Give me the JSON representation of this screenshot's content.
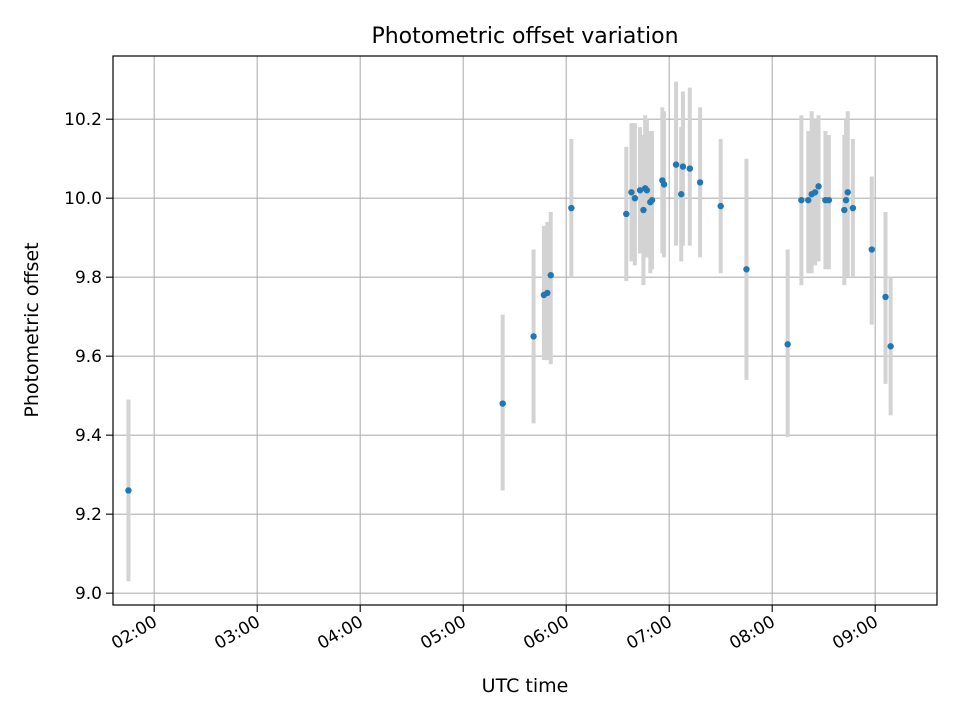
{
  "chart_data": {
    "type": "scatter",
    "title": "Photometric offset variation",
    "xlabel": "UTC time",
    "ylabel": "Photometric offset",
    "xlim": [
      "01:36",
      "09:36"
    ],
    "ylim": [
      8.97,
      10.36
    ],
    "x_ticks": [
      "02:00",
      "03:00",
      "04:00",
      "05:00",
      "06:00",
      "07:00",
      "08:00",
      "09:00"
    ],
    "y_ticks": [
      "9.0",
      "9.2",
      "9.4",
      "9.6",
      "9.8",
      "10.0",
      "10.2"
    ],
    "grid": true,
    "marker_color": "#1f77b4",
    "errorbar_color": "#d3d3d3",
    "points": [
      {
        "t": "01:45",
        "y": 9.26,
        "lo": 9.03,
        "hi": 9.49
      },
      {
        "t": "05:23",
        "y": 9.48,
        "lo": 9.26,
        "hi": 9.705
      },
      {
        "t": "05:41",
        "y": 9.65,
        "lo": 9.43,
        "hi": 9.87
      },
      {
        "t": "05:47",
        "y": 9.755,
        "lo": 9.59,
        "hi": 9.93
      },
      {
        "t": "05:49",
        "y": 9.76,
        "lo": 9.59,
        "hi": 9.94
      },
      {
        "t": "05:51",
        "y": 9.805,
        "lo": 9.58,
        "hi": 9.965
      },
      {
        "t": "06:03",
        "y": 9.975,
        "lo": 9.8,
        "hi": 10.15
      },
      {
        "t": "06:35",
        "y": 9.96,
        "lo": 9.79,
        "hi": 10.13
      },
      {
        "t": "06:38",
        "y": 10.015,
        "lo": 9.84,
        "hi": 10.19
      },
      {
        "t": "06:40",
        "y": 10.0,
        "lo": 9.83,
        "hi": 10.19
      },
      {
        "t": "06:43",
        "y": 10.02,
        "lo": 9.86,
        "hi": 10.18
      },
      {
        "t": "06:45",
        "y": 9.97,
        "lo": 9.78,
        "hi": 10.16
      },
      {
        "t": "06:46",
        "y": 10.025,
        "lo": 9.85,
        "hi": 10.21
      },
      {
        "t": "06:47",
        "y": 10.02,
        "lo": 9.85,
        "hi": 10.2
      },
      {
        "t": "06:49",
        "y": 9.99,
        "lo": 9.81,
        "hi": 10.17
      },
      {
        "t": "06:50",
        "y": 9.995,
        "lo": 9.82,
        "hi": 10.17
      },
      {
        "t": "06:56",
        "y": 10.045,
        "lo": 9.86,
        "hi": 10.23
      },
      {
        "t": "06:57",
        "y": 10.035,
        "lo": 9.85,
        "hi": 10.22
      },
      {
        "t": "07:04",
        "y": 10.085,
        "lo": 9.88,
        "hi": 10.295
      },
      {
        "t": "07:07",
        "y": 10.01,
        "lo": 9.84,
        "hi": 10.18
      },
      {
        "t": "07:08",
        "y": 10.08,
        "lo": 9.88,
        "hi": 10.27
      },
      {
        "t": "07:12",
        "y": 10.075,
        "lo": 9.88,
        "hi": 10.28
      },
      {
        "t": "07:18",
        "y": 10.04,
        "lo": 9.85,
        "hi": 10.23
      },
      {
        "t": "07:30",
        "y": 9.98,
        "lo": 9.81,
        "hi": 10.15
      },
      {
        "t": "07:45",
        "y": 9.82,
        "lo": 9.54,
        "hi": 10.1
      },
      {
        "t": "08:09",
        "y": 9.63,
        "lo": 9.395,
        "hi": 9.87
      },
      {
        "t": "08:17",
        "y": 9.995,
        "lo": 9.78,
        "hi": 10.21
      },
      {
        "t": "08:21",
        "y": 9.995,
        "lo": 9.81,
        "hi": 10.17
      },
      {
        "t": "08:23",
        "y": 10.01,
        "lo": 9.81,
        "hi": 10.22
      },
      {
        "t": "08:25",
        "y": 10.015,
        "lo": 9.83,
        "hi": 10.2
      },
      {
        "t": "08:27",
        "y": 10.03,
        "lo": 9.84,
        "hi": 10.21
      },
      {
        "t": "08:31",
        "y": 9.995,
        "lo": 9.82,
        "hi": 10.17
      },
      {
        "t": "08:33",
        "y": 9.995,
        "lo": 9.82,
        "hi": 10.16
      },
      {
        "t": "08:42",
        "y": 9.97,
        "lo": 9.78,
        "hi": 10.16
      },
      {
        "t": "08:43",
        "y": 9.995,
        "lo": 9.8,
        "hi": 10.2
      },
      {
        "t": "08:44",
        "y": 10.015,
        "lo": 9.8,
        "hi": 10.22
      },
      {
        "t": "08:47",
        "y": 9.975,
        "lo": 9.8,
        "hi": 10.15
      },
      {
        "t": "08:58",
        "y": 9.87,
        "lo": 9.68,
        "hi": 10.055
      },
      {
        "t": "09:06",
        "y": 9.75,
        "lo": 9.53,
        "hi": 9.965
      },
      {
        "t": "09:09",
        "y": 9.625,
        "lo": 9.45,
        "hi": 9.8
      }
    ]
  }
}
